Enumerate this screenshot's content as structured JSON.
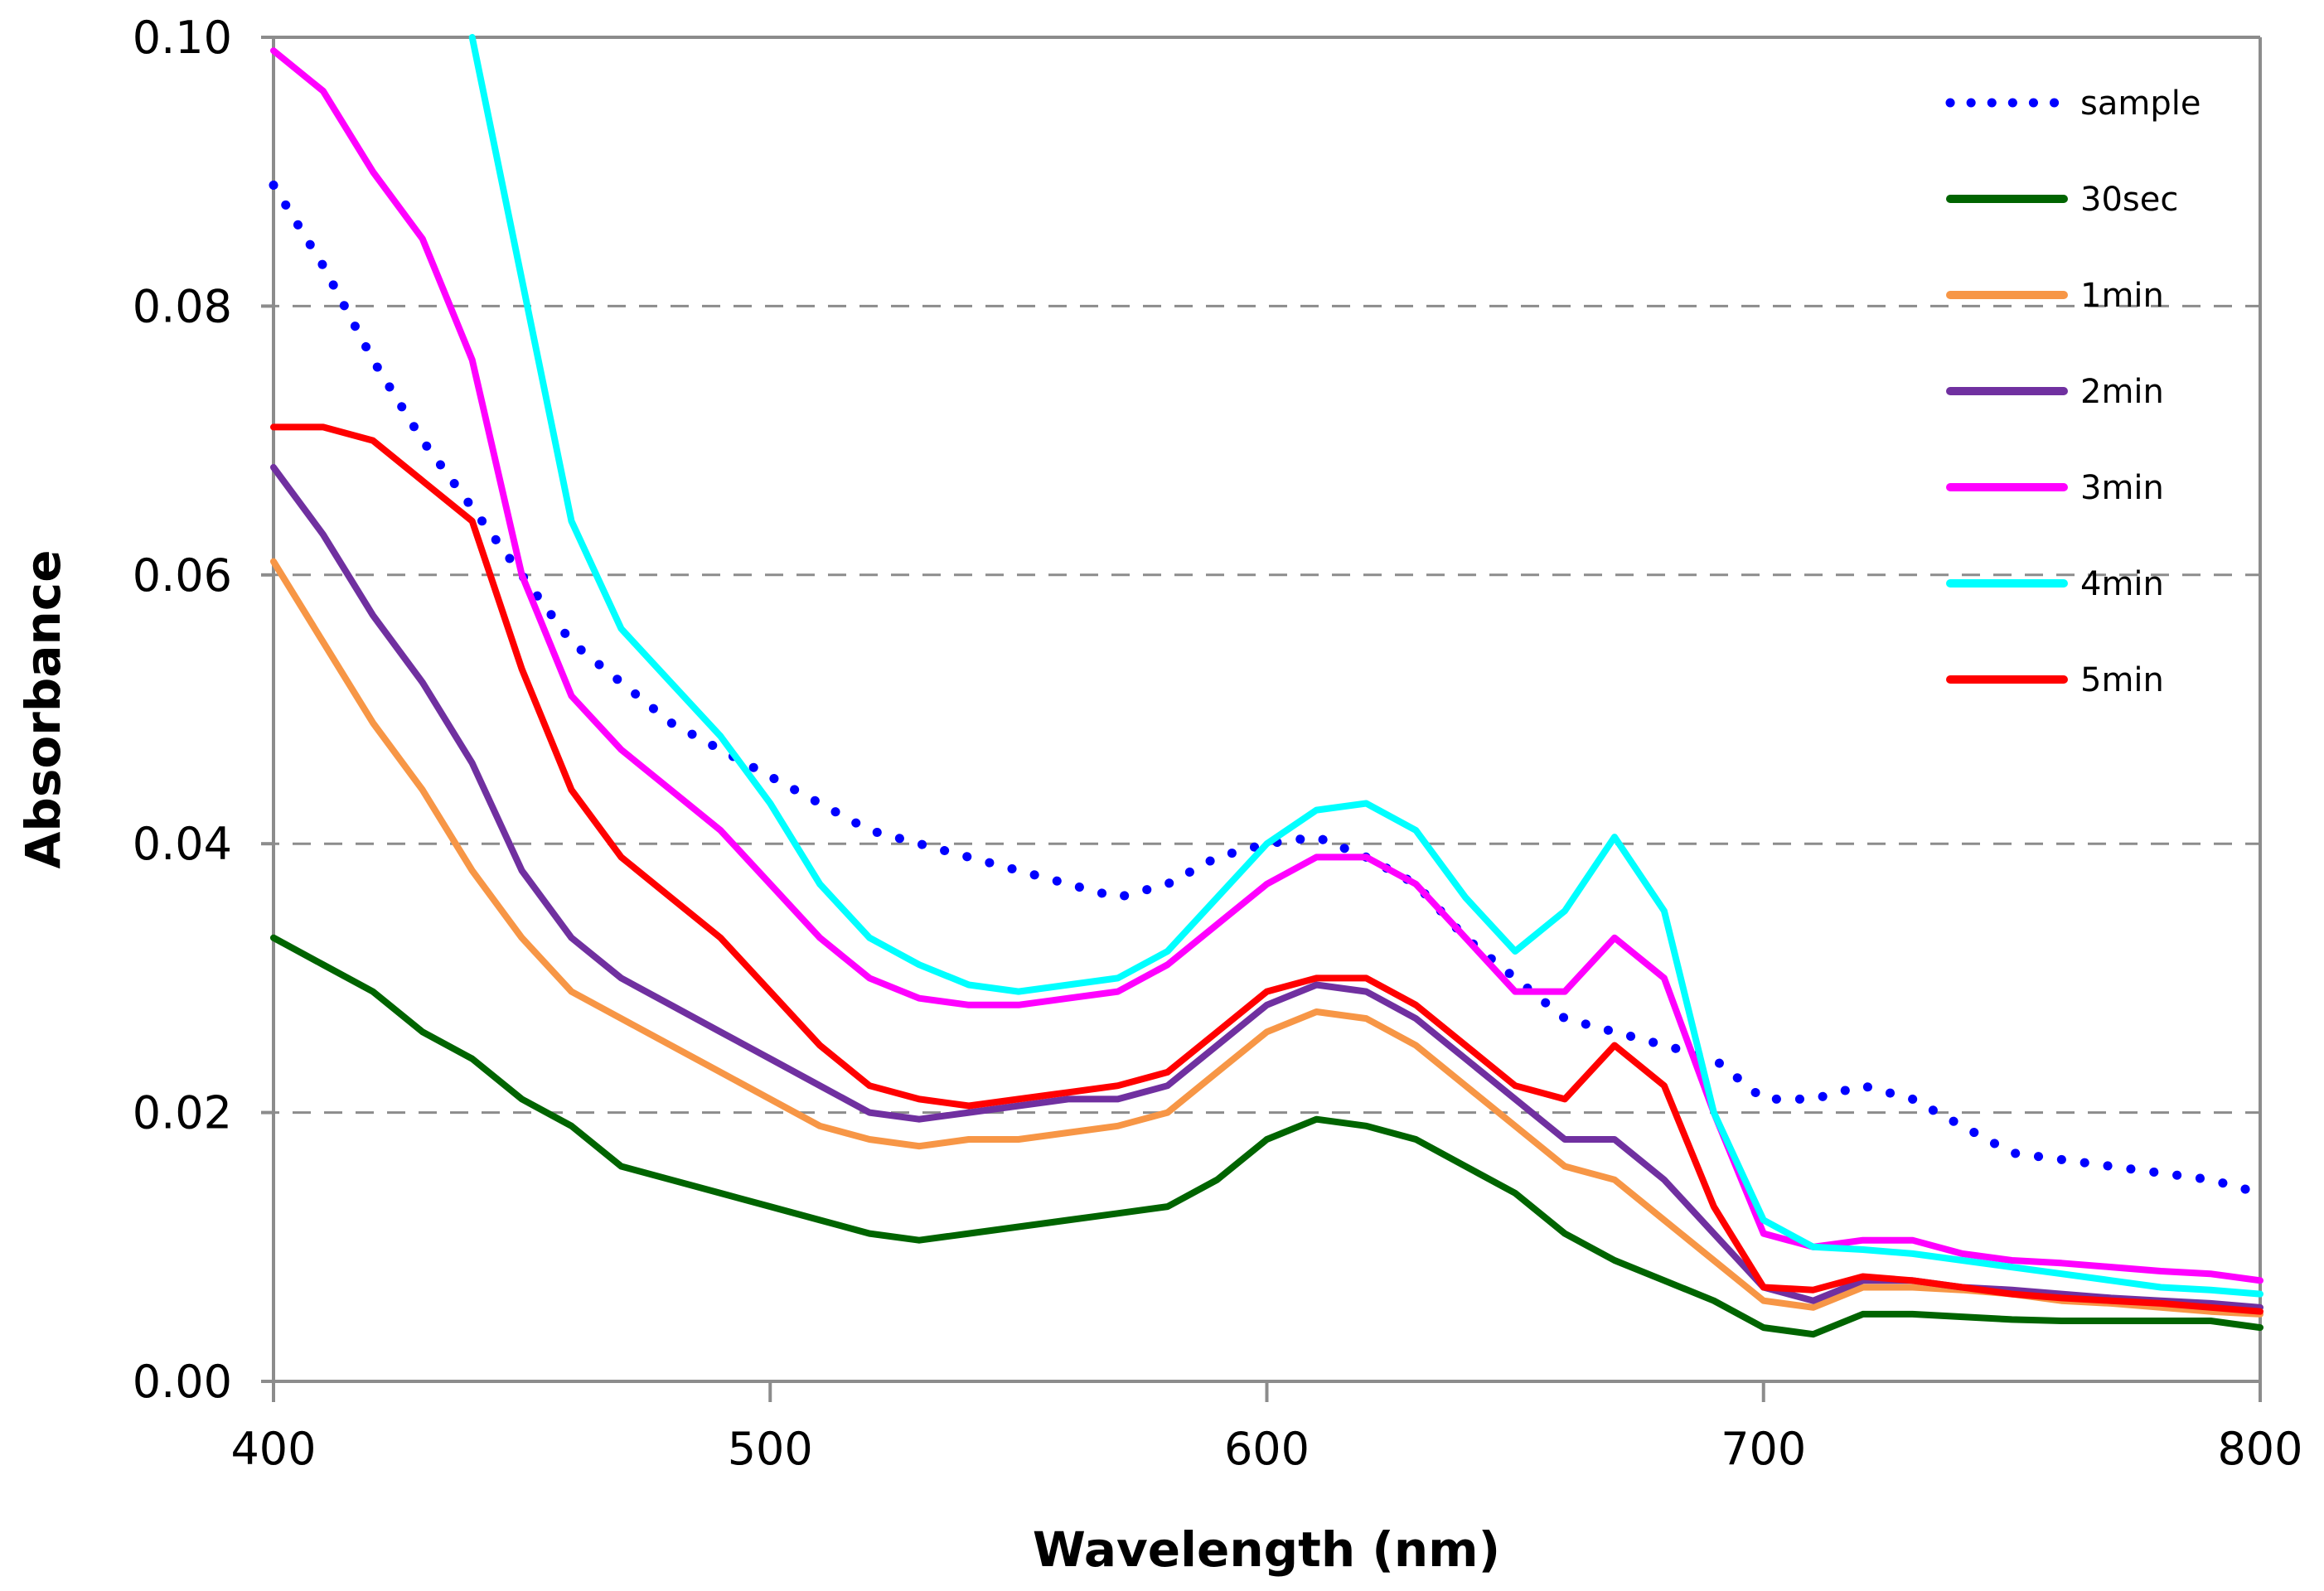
{
  "chart_data": {
    "type": "line",
    "title": "",
    "xlabel": "Wavelength (nm)",
    "ylabel": "Absorbance",
    "xlim": [
      400,
      800
    ],
    "ylim": [
      0,
      0.1
    ],
    "x_ticks": [
      "400",
      "500",
      "600",
      "700",
      "800"
    ],
    "y_ticks": [
      "0.00",
      "0.02",
      "0.04",
      "0.06",
      "0.08",
      "0.10"
    ],
    "grid": "horizontal dashed",
    "legend_position": "top-right",
    "x": [
      400,
      410,
      420,
      430,
      440,
      450,
      460,
      470,
      480,
      490,
      500,
      510,
      520,
      530,
      540,
      550,
      560,
      570,
      580,
      590,
      600,
      610,
      620,
      630,
      640,
      650,
      660,
      670,
      680,
      690,
      700,
      710,
      720,
      730,
      740,
      750,
      760,
      770,
      780,
      790,
      800
    ],
    "series": [
      {
        "name": "sample",
        "color": "#0000ff",
        "style": "dotted",
        "values": [
          0.089,
          0.083,
          0.076,
          0.07,
          0.065,
          0.06,
          0.055,
          0.052,
          0.049,
          0.047,
          0.045,
          0.043,
          0.041,
          0.04,
          0.039,
          0.038,
          0.037,
          0.036,
          0.037,
          0.039,
          0.04,
          0.0405,
          0.039,
          0.037,
          0.033,
          0.03,
          0.027,
          0.026,
          0.025,
          0.024,
          0.021,
          0.021,
          0.022,
          0.021,
          0.019,
          0.017,
          0.0165,
          0.016,
          0.0155,
          0.015,
          0.014
        ]
      },
      {
        "name": "30sec",
        "color": "#006400",
        "style": "solid",
        "values": [
          0.033,
          0.031,
          0.029,
          0.026,
          0.024,
          0.021,
          0.019,
          0.016,
          0.015,
          0.014,
          0.013,
          0.012,
          0.011,
          0.0105,
          0.011,
          0.0115,
          0.012,
          0.0125,
          0.013,
          0.015,
          0.018,
          0.0195,
          0.019,
          0.018,
          0.016,
          0.014,
          0.011,
          0.009,
          0.0075,
          0.006,
          0.004,
          0.0035,
          0.005,
          0.005,
          0.0048,
          0.0046,
          0.0045,
          0.0045,
          0.0045,
          0.0045,
          0.004
        ]
      },
      {
        "name": "1min",
        "color": "#f79646",
        "style": "solid",
        "values": [
          0.061,
          0.055,
          0.049,
          0.044,
          0.038,
          0.033,
          0.029,
          0.027,
          0.025,
          0.023,
          0.021,
          0.019,
          0.018,
          0.0175,
          0.018,
          0.018,
          0.0185,
          0.019,
          0.02,
          0.023,
          0.026,
          0.0275,
          0.027,
          0.025,
          0.022,
          0.019,
          0.016,
          0.015,
          0.012,
          0.009,
          0.006,
          0.0055,
          0.007,
          0.007,
          0.0068,
          0.0065,
          0.006,
          0.0058,
          0.0055,
          0.0052,
          0.005
        ]
      },
      {
        "name": "2min",
        "color": "#7030a0",
        "style": "solid",
        "values": [
          0.068,
          0.063,
          0.057,
          0.052,
          0.046,
          0.038,
          0.033,
          0.03,
          0.028,
          0.026,
          0.024,
          0.022,
          0.02,
          0.0195,
          0.02,
          0.0205,
          0.021,
          0.021,
          0.022,
          0.025,
          0.028,
          0.0295,
          0.029,
          0.027,
          0.024,
          0.021,
          0.018,
          0.018,
          0.015,
          0.011,
          0.007,
          0.006,
          0.0075,
          0.0075,
          0.007,
          0.0068,
          0.0065,
          0.0062,
          0.006,
          0.0058,
          0.0055
        ]
      },
      {
        "name": "3min",
        "color": "#ff00ff",
        "style": "solid",
        "values": [
          0.099,
          0.096,
          0.09,
          0.085,
          0.076,
          0.06,
          0.051,
          0.047,
          0.044,
          0.041,
          0.037,
          0.033,
          0.03,
          0.0285,
          0.028,
          0.028,
          0.0285,
          0.029,
          0.031,
          0.034,
          0.037,
          0.039,
          0.039,
          0.037,
          0.033,
          0.029,
          0.029,
          0.033,
          0.03,
          0.02,
          0.011,
          0.01,
          0.0105,
          0.0105,
          0.0095,
          0.009,
          0.0088,
          0.0085,
          0.0082,
          0.008,
          0.0075
        ]
      },
      {
        "name": "4min",
        "color": "#00ffff",
        "style": "solid",
        "values": [
          null,
          null,
          null,
          null,
          0.1,
          0.082,
          0.064,
          0.056,
          0.052,
          0.048,
          0.043,
          0.037,
          0.033,
          0.031,
          0.0295,
          0.029,
          0.0295,
          0.03,
          0.032,
          0.036,
          0.04,
          0.0425,
          0.043,
          0.041,
          0.036,
          0.032,
          0.035,
          0.0405,
          0.035,
          0.02,
          0.012,
          0.01,
          0.0098,
          0.0095,
          0.009,
          0.0085,
          0.008,
          0.0075,
          0.007,
          0.0068,
          0.0065
        ]
      },
      {
        "name": "5min",
        "color": "#ff0000",
        "style": "solid",
        "values": [
          0.071,
          0.071,
          0.07,
          0.067,
          0.064,
          0.053,
          0.044,
          0.039,
          0.036,
          0.033,
          0.029,
          0.025,
          0.022,
          0.021,
          0.0205,
          0.021,
          0.0215,
          0.022,
          0.023,
          0.026,
          0.029,
          0.03,
          0.03,
          0.028,
          0.025,
          0.022,
          0.021,
          0.025,
          0.022,
          0.013,
          0.007,
          0.0068,
          0.0078,
          0.0075,
          0.007,
          0.0065,
          0.0062,
          0.006,
          0.0058,
          0.0055,
          0.0052
        ]
      }
    ]
  }
}
